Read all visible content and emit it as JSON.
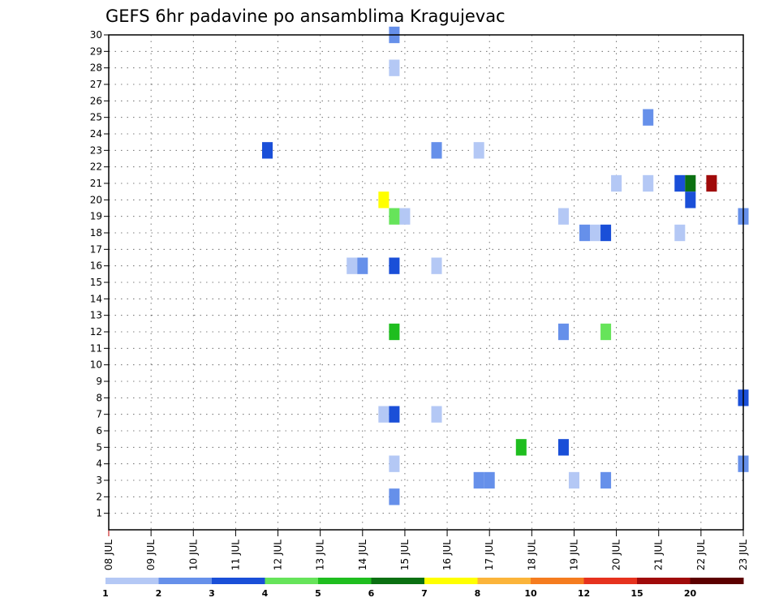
{
  "chart_data": {
    "type": "heatmap",
    "title": "GEFS 6hr padavine po ansamblima Kragujevac",
    "xlabel": "",
    "ylabel": "",
    "x_ticks": [
      "08 JUL",
      "09 JUL",
      "10 JUL",
      "11 JUL",
      "12 JUL",
      "13 JUL",
      "14 JUL",
      "15 JUL",
      "16 JUL",
      "17 JUL",
      "18 JUL",
      "19 JUL",
      "20 JUL",
      "21 JUL",
      "22 JUL",
      "23 JUL"
    ],
    "y_ticks": [
      1,
      2,
      3,
      4,
      5,
      6,
      7,
      8,
      9,
      10,
      11,
      12,
      13,
      14,
      15,
      16,
      17,
      18,
      19,
      20,
      21,
      22,
      23,
      24,
      25,
      26,
      27,
      28,
      29,
      30
    ],
    "grid": true,
    "colorbar": {
      "levels": [
        "1",
        "2",
        "3",
        "4",
        "5",
        "6",
        "7",
        "8",
        "10",
        "12",
        "15",
        "20"
      ],
      "colors": [
        "#b4c8f5",
        "#6690ea",
        "#1a4fd8",
        "#66e45a",
        "#1fbe1f",
        "#0b7012",
        "#ffff00",
        "#fbb43a",
        "#f57c1f",
        "#e6321e",
        "#a00a0a",
        "#5c0000"
      ]
    },
    "cells": [
      {
        "day": 14.75,
        "member": 30,
        "color": "#6690ea"
      },
      {
        "day": 14.75,
        "member": 28,
        "color": "#b4c8f5"
      },
      {
        "day": 20.75,
        "member": 25,
        "color": "#6690ea"
      },
      {
        "day": 11.75,
        "member": 23,
        "color": "#1a4fd8"
      },
      {
        "day": 15.75,
        "member": 23,
        "color": "#6690ea"
      },
      {
        "day": 16.75,
        "member": 23,
        "color": "#b4c8f5"
      },
      {
        "day": 20.0,
        "member": 21,
        "color": "#b4c8f5"
      },
      {
        "day": 20.75,
        "member": 21,
        "color": "#b4c8f5"
      },
      {
        "day": 21.5,
        "member": 21,
        "color": "#1a4fd8"
      },
      {
        "day": 21.75,
        "member": 21,
        "color": "#0b7012"
      },
      {
        "day": 22.25,
        "member": 21,
        "color": "#a00a0a"
      },
      {
        "day": 14.5,
        "member": 20,
        "color": "#ffff00"
      },
      {
        "day": 21.75,
        "member": 20,
        "color": "#1a4fd8"
      },
      {
        "day": 14.75,
        "member": 19,
        "color": "#66e45a"
      },
      {
        "day": 15.0,
        "member": 19,
        "color": "#b4c8f5"
      },
      {
        "day": 18.75,
        "member": 19,
        "color": "#b4c8f5"
      },
      {
        "day": 23.0,
        "member": 19,
        "color": "#6690ea"
      },
      {
        "day": 19.25,
        "member": 18,
        "color": "#6690ea"
      },
      {
        "day": 19.5,
        "member": 18,
        "color": "#b4c8f5"
      },
      {
        "day": 19.75,
        "member": 18,
        "color": "#1a4fd8"
      },
      {
        "day": 21.5,
        "member": 18,
        "color": "#b4c8f5"
      },
      {
        "day": 13.75,
        "member": 16,
        "color": "#b4c8f5"
      },
      {
        "day": 14.0,
        "member": 16,
        "color": "#6690ea"
      },
      {
        "day": 14.75,
        "member": 16,
        "color": "#1a4fd8"
      },
      {
        "day": 15.75,
        "member": 16,
        "color": "#b4c8f5"
      },
      {
        "day": 14.75,
        "member": 12,
        "color": "#1fbe1f"
      },
      {
        "day": 18.75,
        "member": 12,
        "color": "#6690ea"
      },
      {
        "day": 19.75,
        "member": 12,
        "color": "#66e45a"
      },
      {
        "day": 23.0,
        "member": 8,
        "color": "#1a4fd8"
      },
      {
        "day": 14.5,
        "member": 7,
        "color": "#b4c8f5"
      },
      {
        "day": 14.75,
        "member": 7,
        "color": "#1a4fd8"
      },
      {
        "day": 15.75,
        "member": 7,
        "color": "#b4c8f5"
      },
      {
        "day": 17.75,
        "member": 5,
        "color": "#1fbe1f"
      },
      {
        "day": 18.75,
        "member": 5,
        "color": "#1a4fd8"
      },
      {
        "day": 14.75,
        "member": 4,
        "color": "#b4c8f5"
      },
      {
        "day": 23.0,
        "member": 4,
        "color": "#6690ea"
      },
      {
        "day": 16.75,
        "member": 3,
        "color": "#6690ea"
      },
      {
        "day": 17.0,
        "member": 3,
        "color": "#6690ea"
      },
      {
        "day": 19.0,
        "member": 3,
        "color": "#b4c8f5"
      },
      {
        "day": 19.75,
        "member": 3,
        "color": "#6690ea"
      },
      {
        "day": 14.75,
        "member": 2,
        "color": "#6690ea"
      }
    ]
  }
}
